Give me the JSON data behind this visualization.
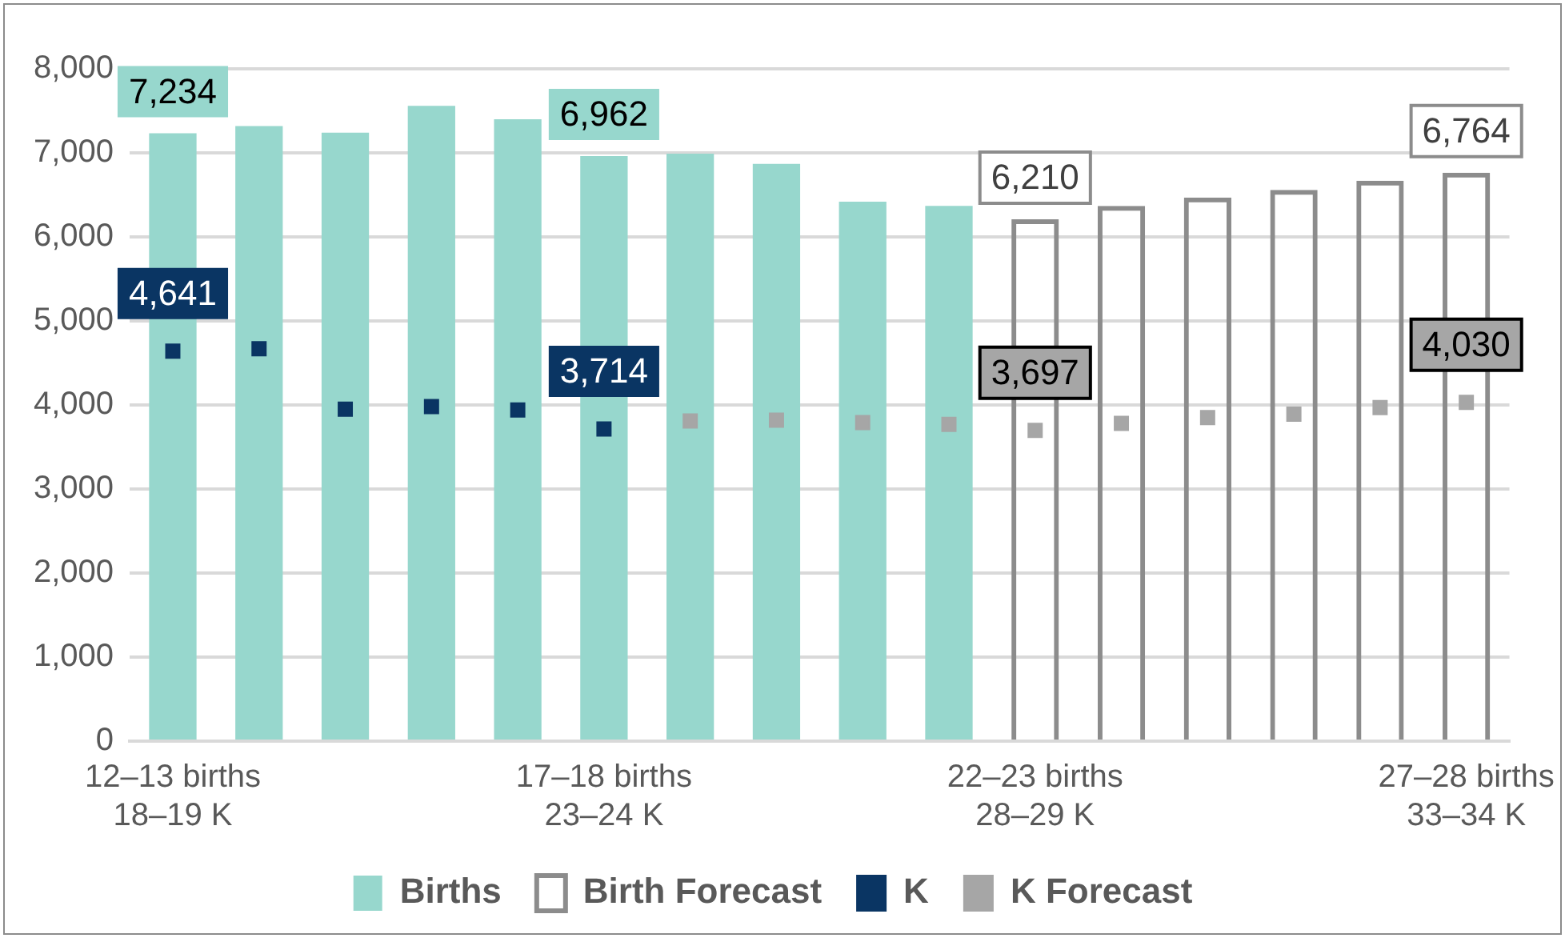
{
  "chart_data": {
    "type": "bar",
    "categories": [
      "12–13 births\n18–19 K",
      null,
      null,
      null,
      null,
      "17–18 births\n23–24 K",
      null,
      null,
      null,
      null,
      "22–23 births\n28–29 K",
      null,
      null,
      null,
      null,
      "27–28 births\n33–34 K"
    ],
    "series": [
      {
        "name": "Births",
        "color": "#97d7cd",
        "values": [
          7234,
          7320,
          7240,
          7560,
          7400,
          6962,
          6990,
          6870,
          6420,
          6370,
          null,
          null,
          null,
          null,
          null,
          null
        ],
        "value_labels": [
          "7,234",
          null,
          null,
          null,
          null,
          "6,962",
          null,
          null,
          null,
          null,
          null,
          null,
          null,
          null,
          null,
          null
        ]
      },
      {
        "name": "Birth Forecast",
        "color": "#8c8c8c",
        "values": [
          null,
          null,
          null,
          null,
          null,
          null,
          null,
          null,
          null,
          null,
          6210,
          6370,
          6470,
          6560,
          6670,
          6764
        ],
        "value_labels": [
          null,
          null,
          null,
          null,
          null,
          null,
          null,
          null,
          null,
          null,
          "6,210",
          null,
          null,
          null,
          null,
          "6,764"
        ]
      },
      {
        "name": "K",
        "type": "scatter",
        "color": "#0a3563",
        "values": [
          4641,
          4670,
          3950,
          3980,
          3940,
          3714,
          null,
          null,
          null,
          null,
          null,
          null,
          null,
          null,
          null,
          null
        ],
        "value_labels": [
          "4,641",
          null,
          null,
          null,
          null,
          "3,714",
          null,
          null,
          null,
          null,
          null,
          null,
          null,
          null,
          null,
          null
        ]
      },
      {
        "name": "K Forecast",
        "type": "scatter",
        "color": "#a6a6a6",
        "values": [
          null,
          null,
          null,
          null,
          null,
          null,
          3810,
          3820,
          3790,
          3770,
          3697,
          3780,
          3850,
          3890,
          3970,
          4030
        ],
        "value_labels": [
          null,
          null,
          null,
          null,
          null,
          null,
          null,
          null,
          null,
          null,
          "3,697",
          null,
          null,
          null,
          null,
          "4,030"
        ]
      }
    ],
    "marker": "square",
    "ylim": [
      0,
      8000
    ],
    "yticks": [
      {
        "value": 0,
        "label": "0"
      },
      {
        "value": 1000,
        "label": "1,000"
      },
      {
        "value": 2000,
        "label": "2,000"
      },
      {
        "value": 3000,
        "label": "3,000"
      },
      {
        "value": 4000,
        "label": "4,000"
      },
      {
        "value": 5000,
        "label": "5,000"
      },
      {
        "value": 6000,
        "label": "6,000"
      },
      {
        "value": 7000,
        "label": "7,000"
      },
      {
        "value": 8000,
        "label": "8,000"
      }
    ],
    "grid": "y",
    "legend": "bottom"
  }
}
